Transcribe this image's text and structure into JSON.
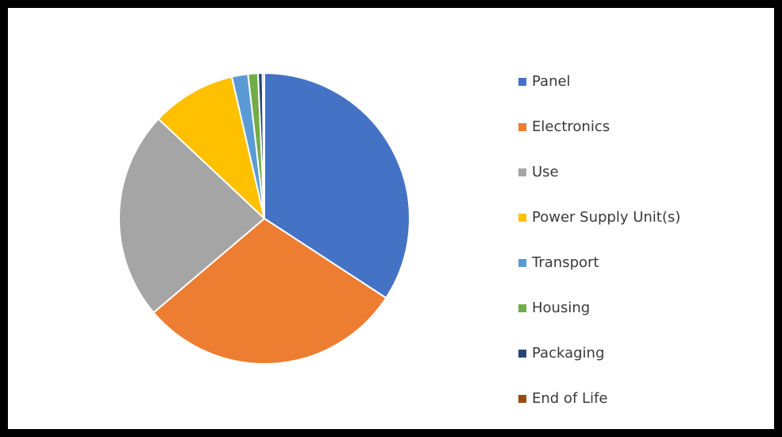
{
  "chart_data": {
    "type": "pie",
    "title": "",
    "legend_position": "right",
    "slices": [
      {
        "label": "Panel",
        "value": 34.2,
        "color": "#4472C4"
      },
      {
        "label": "Electronics",
        "value": 29.6,
        "color": "#ED7D31"
      },
      {
        "label": "Use",
        "value": 23.2,
        "color": "#A5A5A5"
      },
      {
        "label": "Power Supply Unit(s)",
        "value": 9.4,
        "color": "#FFC000"
      },
      {
        "label": "Transport",
        "value": 1.8,
        "color": "#5B9BD5"
      },
      {
        "label": "Housing",
        "value": 1.1,
        "color": "#70AD47"
      },
      {
        "label": "Packaging",
        "value": 0.5,
        "color": "#264478"
      },
      {
        "label": "End of Life",
        "value": 0.2,
        "color": "#9E480E"
      }
    ]
  }
}
